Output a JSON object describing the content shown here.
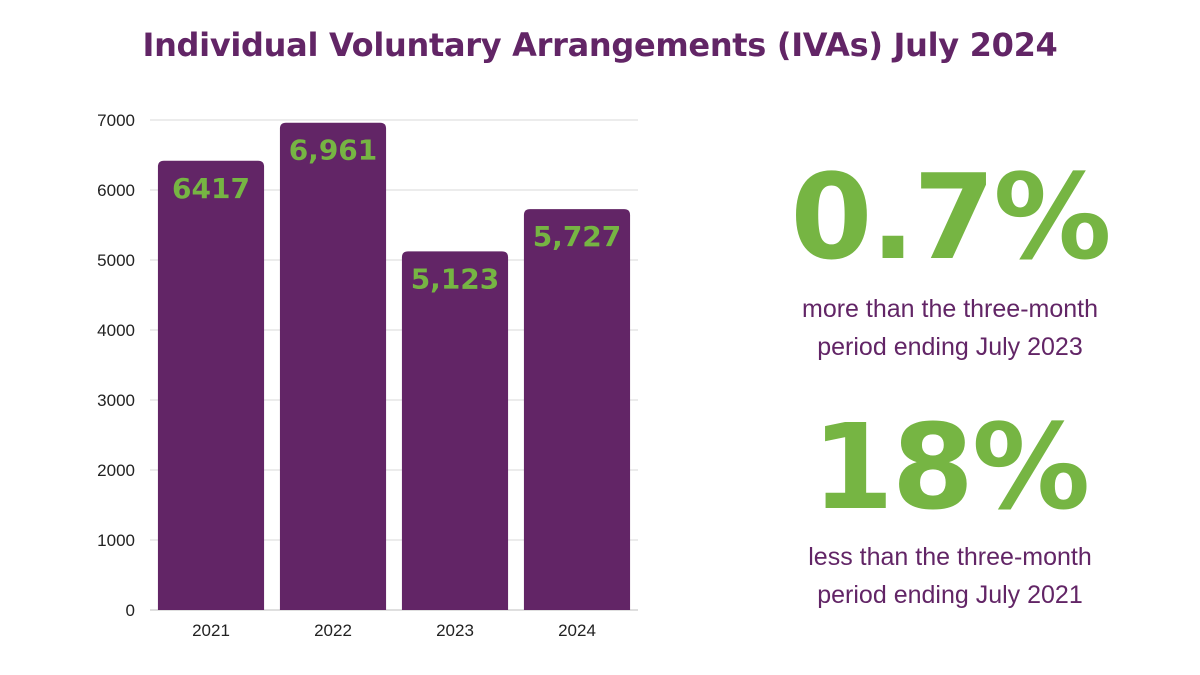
{
  "title": "Individual Voluntary Arrangements (IVAs) July 2024",
  "colors": {
    "bar": "#622566",
    "label": "#76b543",
    "title": "#622566",
    "grid": "#d9d9d9"
  },
  "chart_data": {
    "type": "bar",
    "categories": [
      "2021",
      "2022",
      "2023",
      "2024"
    ],
    "values": [
      6417,
      6961,
      5123,
      5727
    ],
    "data_labels": [
      "6417",
      "6,961",
      "5,123",
      "5,727"
    ],
    "ylim": [
      0,
      7000
    ],
    "yticks": [
      0,
      1000,
      2000,
      3000,
      4000,
      5000,
      6000,
      7000
    ],
    "grid": true,
    "title": "",
    "xlabel": "",
    "ylabel": ""
  },
  "stats": [
    {
      "value": "0.7%",
      "text_line1": "more than the three-month",
      "text_line2": "period ending July 2023"
    },
    {
      "value": "18%",
      "text_line1": "less than the three-month",
      "text_line2": "period ending July 2021"
    }
  ]
}
